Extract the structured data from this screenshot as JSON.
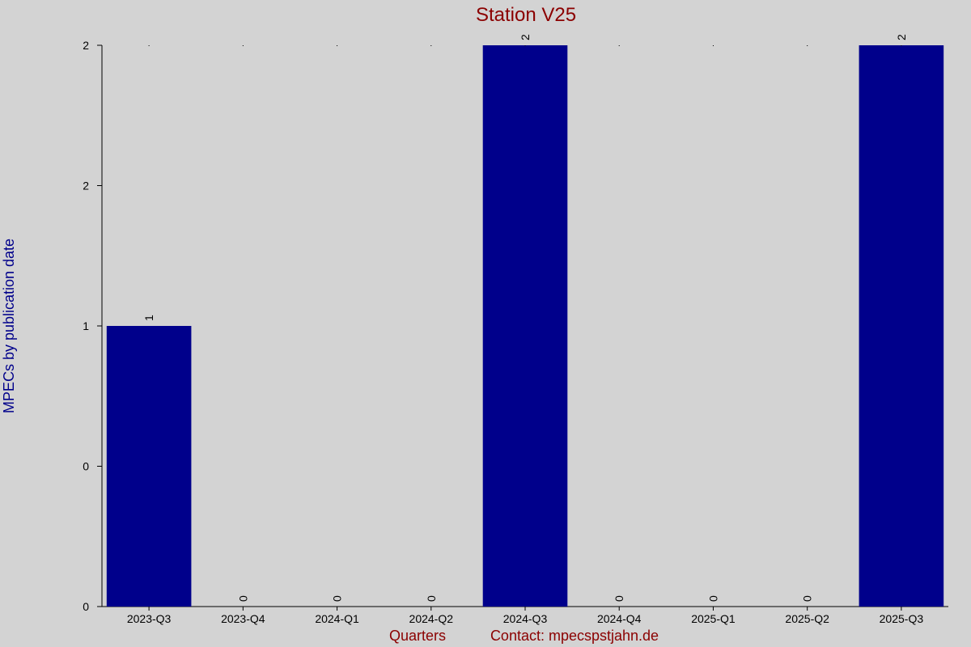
{
  "chart_data": {
    "type": "bar",
    "title": "Station V25",
    "ylabel": "MPECs by publication date",
    "xlabel": "Quarters",
    "contact": "Contact: mpecspstjahn.de",
    "categories": [
      "2023-Q3",
      "2023-Q4",
      "2024-Q1",
      "2024-Q2",
      "2024-Q3",
      "2024-Q4",
      "2025-Q1",
      "2025-Q2",
      "2025-Q3"
    ],
    "values": [
      1,
      0,
      0,
      0,
      2,
      0,
      0,
      0,
      2
    ],
    "ylim": [
      0,
      2
    ],
    "y_ticks": [
      {
        "value": 0,
        "label": "0"
      },
      {
        "value": 0.5,
        "label": "0"
      },
      {
        "value": 1,
        "label": "1"
      },
      {
        "value": 1.5,
        "label": "2"
      },
      {
        "value": 2,
        "label": "2"
      }
    ],
    "colors": {
      "background": "#d3d3d3",
      "bar": "#00008b",
      "title": "#8b0000",
      "ylabel": "#00008b",
      "xlabel": "#8b0000"
    },
    "grid": false,
    "legend": "none"
  }
}
